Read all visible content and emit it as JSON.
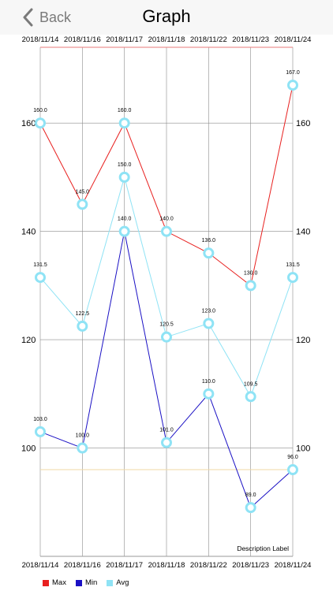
{
  "nav": {
    "back_label": "Back",
    "title": "Graph"
  },
  "chart_data": {
    "type": "line",
    "categories": [
      "2018/11/14",
      "2018/11/16",
      "2018/11/17",
      "2018/11/18",
      "2018/11/22",
      "2018/11/23",
      "2018/11/24"
    ],
    "series": [
      {
        "name": "Max",
        "color": "#e8201f",
        "values": [
          160.0,
          145.0,
          160.0,
          140.0,
          136.0,
          130.0,
          167.0
        ]
      },
      {
        "name": "Min",
        "color": "#1a10c4",
        "values": [
          103.0,
          100.0,
          140.0,
          101.0,
          110.0,
          89.0,
          96.0
        ]
      },
      {
        "name": "Avg",
        "color": "#8fe3f5",
        "values": [
          131.5,
          122.5,
          150.0,
          120.5,
          123.0,
          109.5,
          131.5
        ]
      }
    ],
    "data_labels": {
      "Max": [
        "160.0",
        "145.0",
        "160.0",
        "140.0",
        "136.0",
        "130.0",
        "167.0"
      ],
      "Min": [
        "103.0",
        "100.0",
        "140.0",
        "101.0",
        "110.0",
        "89.0",
        "96.0"
      ],
      "Avg": [
        "131.5",
        "122.5",
        "150.0",
        "120.5",
        "123.0",
        "109.5",
        "131.5"
      ]
    },
    "ylim": [
      80,
      174
    ],
    "y_ticks": [
      100,
      120,
      140,
      160
    ],
    "y_tick_labels": [
      "100",
      "120",
      "140",
      "160"
    ],
    "limit_line": 96,
    "limit_line_color": "#f2d9a6",
    "description": "Description Label",
    "grid": true,
    "axis_labels_top_and_bottom": true,
    "y_axis_left_and_right": true,
    "legend_position": "bottom-left"
  },
  "colors": {
    "axis": "#9a9a9a",
    "grid": "#8c8c8c",
    "top_border": "#e87a7a",
    "marker_fill": "#ffffff"
  }
}
